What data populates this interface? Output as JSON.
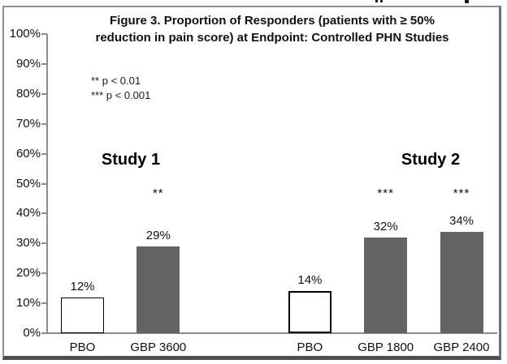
{
  "page": {
    "background": "#ffffff"
  },
  "chart_data": {
    "type": "bar",
    "title": "Figure 3. Proportion of Responders (patients with ≥ 50% reduction in pain score) at Endpoint: Controlled PHN Studies",
    "title_lines": [
      "Figure 3. Proportion of Responders (patients with ≥ 50%",
      "reduction in pain score) at Endpoint: Controlled PHN Studies"
    ],
    "annotations": [
      "** p < 0.01",
      "*** p < 0.001"
    ],
    "group_labels": [
      "Study 1",
      "Study 2"
    ],
    "y_axis": {
      "ylim": [
        0,
        100
      ],
      "tick_step": 10,
      "unit": "%",
      "tick_values": [
        0,
        10,
        20,
        30,
        40,
        50,
        60,
        70,
        80,
        90,
        100
      ],
      "tick_labels": [
        "0%",
        "10%",
        "20%",
        "30%",
        "40%",
        "50%",
        "60%",
        "70%",
        "80%",
        "90%",
        "100%"
      ]
    },
    "categories": [
      "PBO",
      "GBP 3600",
      "PBO",
      "GBP 1800",
      "GBP 2400"
    ],
    "values": [
      12,
      29,
      14,
      32,
      34
    ],
    "bars": [
      {
        "group": "Study 1",
        "label": "PBO",
        "value": 12,
        "value_label": "12%",
        "fill": "white",
        "outline": "thin",
        "sig": "",
        "slot": 0
      },
      {
        "group": "Study 1",
        "label": "GBP 3600",
        "value": 29,
        "value_label": "29%",
        "fill": "gray",
        "outline": "none",
        "sig": "**",
        "slot": 1
      },
      {
        "group": "Study 2",
        "label": "PBO",
        "value": 14,
        "value_label": "14%",
        "fill": "white",
        "outline": "thick",
        "sig": "",
        "slot": 3
      },
      {
        "group": "Study 2",
        "label": "GBP 1800",
        "value": 32,
        "value_label": "32%",
        "fill": "gray",
        "outline": "none",
        "sig": "***",
        "slot": 4
      },
      {
        "group": "Study 2",
        "label": "GBP 2400",
        "value": 34,
        "value_label": "34%",
        "fill": "gray",
        "outline": "none",
        "sig": "***",
        "slot": 5
      }
    ],
    "colors": {
      "bar_gray": "#636363",
      "bar_white": "#ffffff",
      "bar_outline": "#000000",
      "axis": "#8c8c8c",
      "text": "#111111",
      "frame_border": "#8f8f8f"
    },
    "grid": false,
    "legend": "none"
  }
}
